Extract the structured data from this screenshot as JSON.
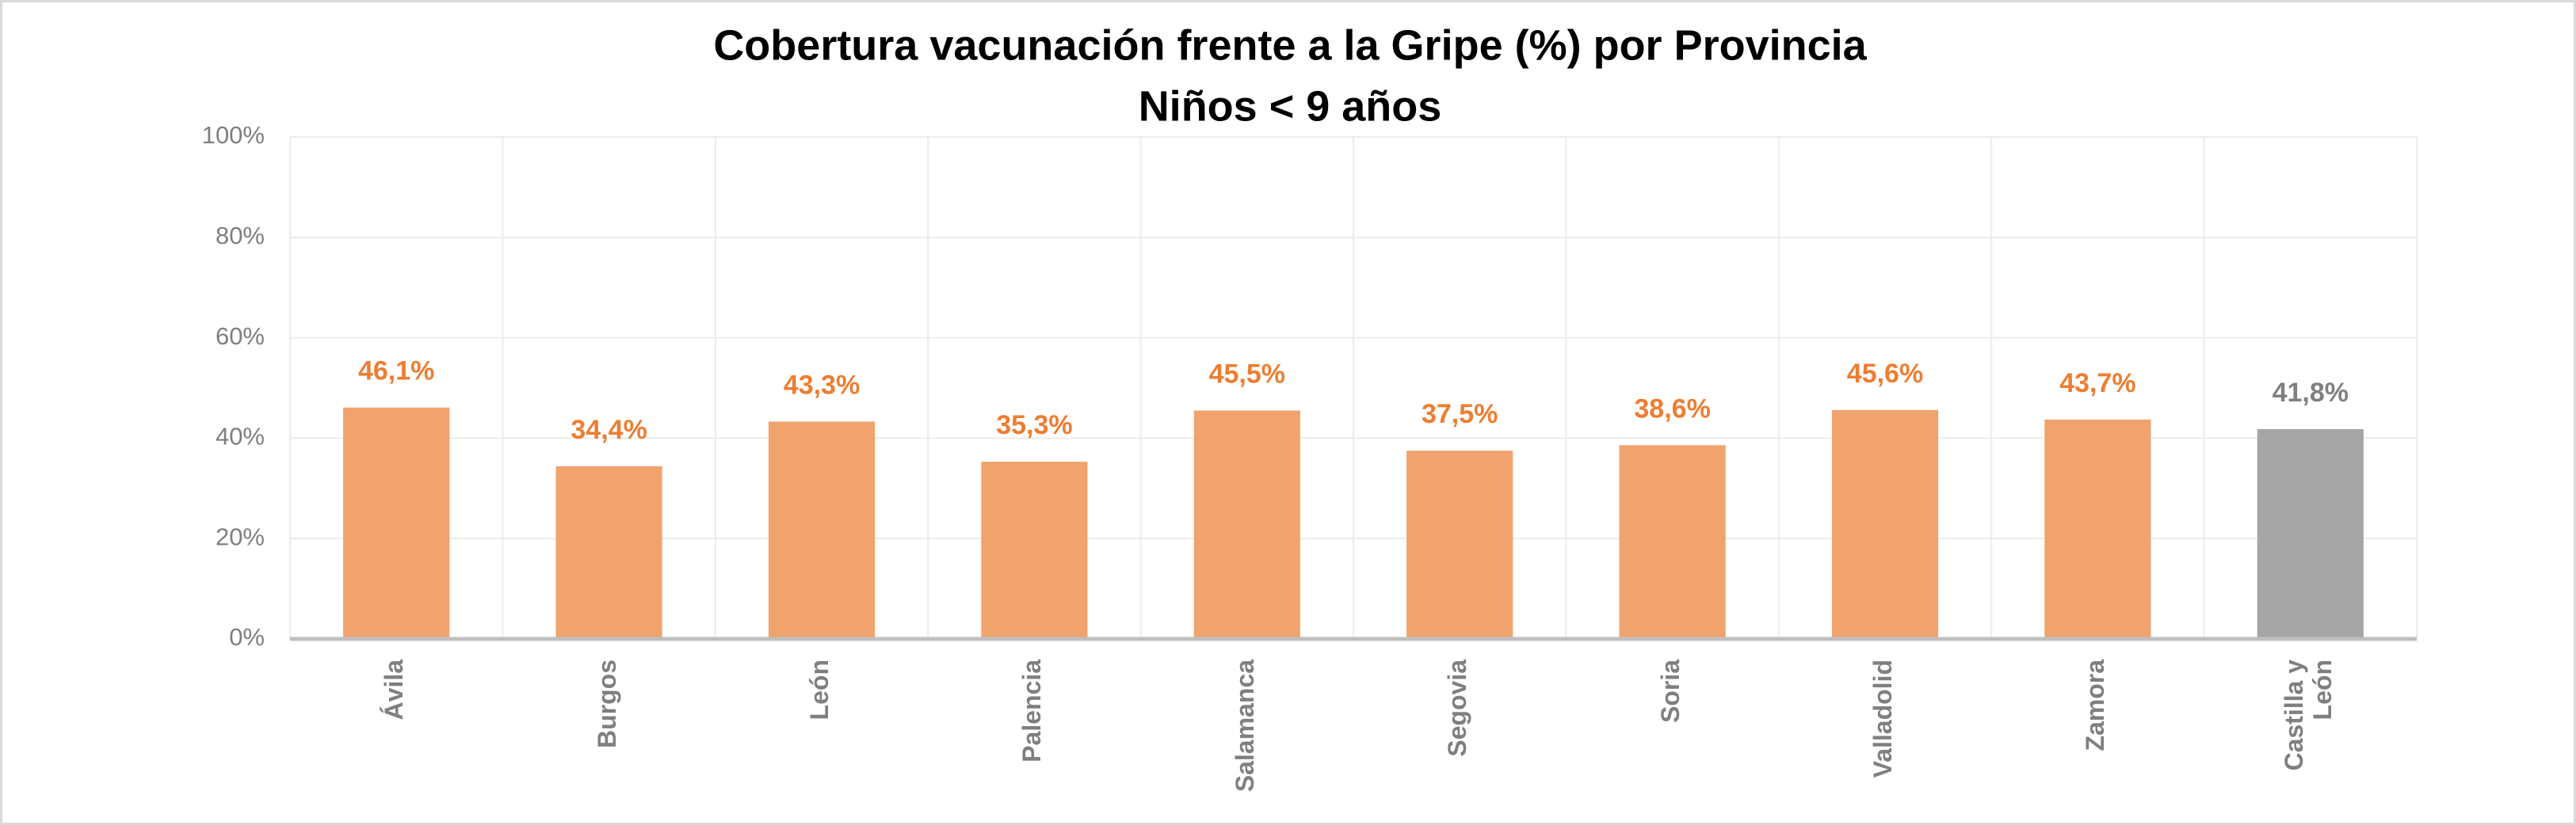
{
  "chart_data": {
    "type": "bar",
    "title": "Cobertura vacunación frente a la Gripe (%) por Provincia",
    "subtitle": "Niños < 9 años",
    "categories": [
      "Ávila",
      "Burgos",
      "León",
      "Palencia",
      "Salamanca",
      "Segovia",
      "Soria",
      "Valladolid",
      "Zamora",
      "Castilla y León"
    ],
    "values": [
      46.1,
      34.4,
      43.3,
      35.3,
      45.5,
      37.5,
      38.6,
      45.6,
      43.7,
      41.8
    ],
    "value_labels": [
      "46,1%",
      "34,4%",
      "43,3%",
      "35,3%",
      "45,5%",
      "37,5%",
      "38,6%",
      "45,6%",
      "43,7%",
      "41,8%"
    ],
    "colors": [
      "#f0a36c",
      "#f0a36c",
      "#f0a36c",
      "#f0a36c",
      "#f0a36c",
      "#f0a36c",
      "#f0a36c",
      "#f0a36c",
      "#f0a36c",
      "#a5a5a5"
    ],
    "label_colors": [
      "#ed7d31",
      "#ed7d31",
      "#ed7d31",
      "#ed7d31",
      "#ed7d31",
      "#ed7d31",
      "#ed7d31",
      "#ed7d31",
      "#ed7d31",
      "#7f7f7f"
    ],
    "ylim": [
      0,
      100
    ],
    "yticks": [
      {
        "value": 0,
        "label": "0%"
      },
      {
        "value": 20,
        "label": "20%"
      },
      {
        "value": 40,
        "label": "40%"
      },
      {
        "value": 60,
        "label": "60%"
      },
      {
        "value": 80,
        "label": "80%"
      },
      {
        "value": 100,
        "label": "100%"
      }
    ],
    "grid": true
  }
}
